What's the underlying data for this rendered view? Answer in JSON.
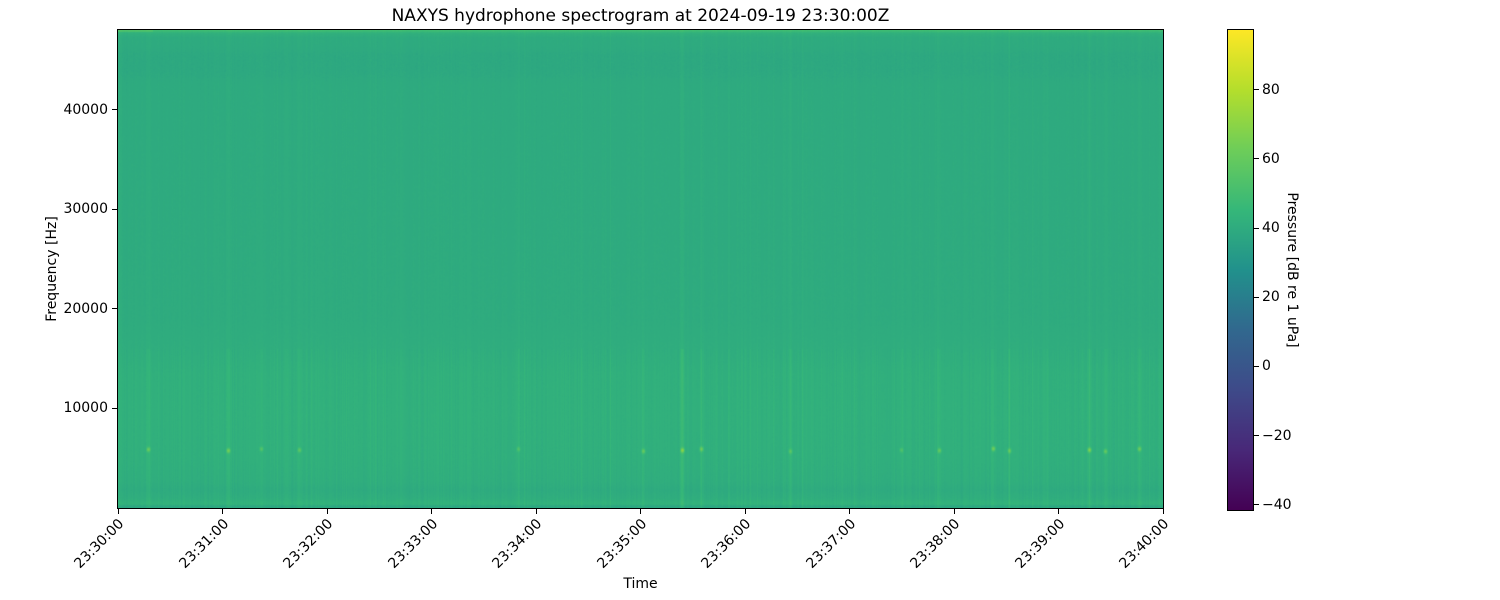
{
  "figure": {
    "background_color": "#ffffff"
  },
  "chart_data": {
    "type": "heatmap",
    "subtype": "spectrogram",
    "title": "NAXYS hydrophone spectrogram at 2024-09-19 23:30:00Z",
    "xlabel": "Time",
    "ylabel": "Frequency [Hz]",
    "x_range": [
      "23:30:00",
      "23:40:00"
    ],
    "x_duration_s": 600,
    "x_tick_labels": [
      "23:30:00",
      "23:31:00",
      "23:32:00",
      "23:33:00",
      "23:34:00",
      "23:35:00",
      "23:36:00",
      "23:37:00",
      "23:38:00",
      "23:39:00",
      "23:40:00"
    ],
    "x_tick_rotation_deg": 45,
    "y_range_hz": [
      0,
      48000
    ],
    "y_ticks_hz": [
      10000,
      20000,
      30000,
      40000
    ],
    "grid": false,
    "legend": "none",
    "color_scale": {
      "label": "Pressure [dB re 1 uPa]",
      "colormap": "viridis",
      "vmin": -41.5,
      "vmax": 97.3,
      "tick_values": [
        80,
        60,
        40,
        20,
        0,
        -20,
        -40
      ],
      "tick_labels": [
        "80",
        "60",
        "40",
        "20",
        "0",
        "−20",
        "−40"
      ],
      "colormap_stops": [
        {
          "t": 0.0,
          "color": "#440154"
        },
        {
          "t": 0.125,
          "color": "#482878"
        },
        {
          "t": 0.25,
          "color": "#3e4a89"
        },
        {
          "t": 0.375,
          "color": "#31688e"
        },
        {
          "t": 0.5,
          "color": "#21918c"
        },
        {
          "t": 0.625,
          "color": "#35b779"
        },
        {
          "t": 0.75,
          "color": "#6dcd59"
        },
        {
          "t": 0.875,
          "color": "#b4de2c"
        },
        {
          "t": 1.0,
          "color": "#fde725"
        }
      ]
    },
    "content_summary": [
      "Broadband field sits near 39-42 dB re 1 uPa (teal-green in viridis) across 0-48 kHz for the full 10 minutes",
      "Slightly brighter band with fine vertical striations between ~2.5 and 16 kHz",
      "Recurring short tonal clicks near 5.8 kHz appear as small yellow-green dots",
      "Faint darker mottled band near 43-46 kHz",
      "Thin bright line along the very top edge (~47.8 kHz), brightest at the start",
      "Narrow brighter line near ~500 Hz just above the bottom edge"
    ],
    "render": {
      "seed": 42,
      "freq_db_profile": [
        [
          0,
          38.2
        ],
        [
          150,
          38.4
        ],
        [
          350,
          43.5
        ],
        [
          600,
          42.5
        ],
        [
          900,
          41.0
        ],
        [
          1800,
          39.8
        ],
        [
          2600,
          41.0
        ],
        [
          5000,
          41.8
        ],
        [
          9000,
          42.2
        ],
        [
          13500,
          42.0
        ],
        [
          16000,
          40.8
        ],
        [
          19000,
          40.0
        ],
        [
          26000,
          39.8
        ],
        [
          42500,
          39.6
        ],
        [
          44000,
          38.8
        ],
        [
          45500,
          38.8
        ],
        [
          46500,
          39.6
        ],
        [
          47300,
          39.8
        ],
        [
          47700,
          42.0
        ],
        [
          48000,
          47.0
        ]
      ],
      "striation_db": 1.6,
      "upper_striation_weight": 0.45,
      "pixel_noise_db": 0.9,
      "bright_column_prob": 0.06,
      "bright_column_db": 2.0,
      "dot_freq_hz": 5800,
      "dot_freq_jitter_hz": 160,
      "dot_sigma_hz": 230,
      "dark_band_hz": [
        43200,
        45800
      ],
      "top_edge": {
        "rows": 2,
        "left_cols": 35,
        "left_boost_db": 6,
        "boost_db": 1.5
      },
      "tonal_events": [
        {
          "t_s": 17,
          "boost_db": 2.5,
          "dot_db": 18
        },
        {
          "t_s": 63,
          "boost_db": 3.0,
          "dot_db": 20
        },
        {
          "t_s": 82,
          "boost_db": 1.5,
          "dot_db": 12
        },
        {
          "t_s": 104,
          "boost_db": 2.0,
          "dot_db": 14
        },
        {
          "t_s": 230,
          "boost_db": 1.5,
          "dot_db": 10
        },
        {
          "t_s": 302,
          "boost_db": 2.5,
          "dot_db": 16
        },
        {
          "t_s": 324,
          "boost_db": 5.0,
          "dot_db": 24
        },
        {
          "t_s": 335,
          "boost_db": 2.5,
          "dot_db": 18
        },
        {
          "t_s": 386,
          "boost_db": 2.0,
          "dot_db": 12
        },
        {
          "t_s": 450,
          "boost_db": 1.5,
          "dot_db": 10
        },
        {
          "t_s": 472,
          "boost_db": 2.5,
          "dot_db": 16
        },
        {
          "t_s": 503,
          "boost_db": 2.0,
          "dot_db": 20
        },
        {
          "t_s": 512,
          "boost_db": 2.0,
          "dot_db": 16
        },
        {
          "t_s": 558,
          "boost_db": 2.5,
          "dot_db": 22
        },
        {
          "t_s": 567,
          "boost_db": 2.0,
          "dot_db": 16
        },
        {
          "t_s": 587,
          "boost_db": 2.5,
          "dot_db": 18
        }
      ]
    }
  }
}
